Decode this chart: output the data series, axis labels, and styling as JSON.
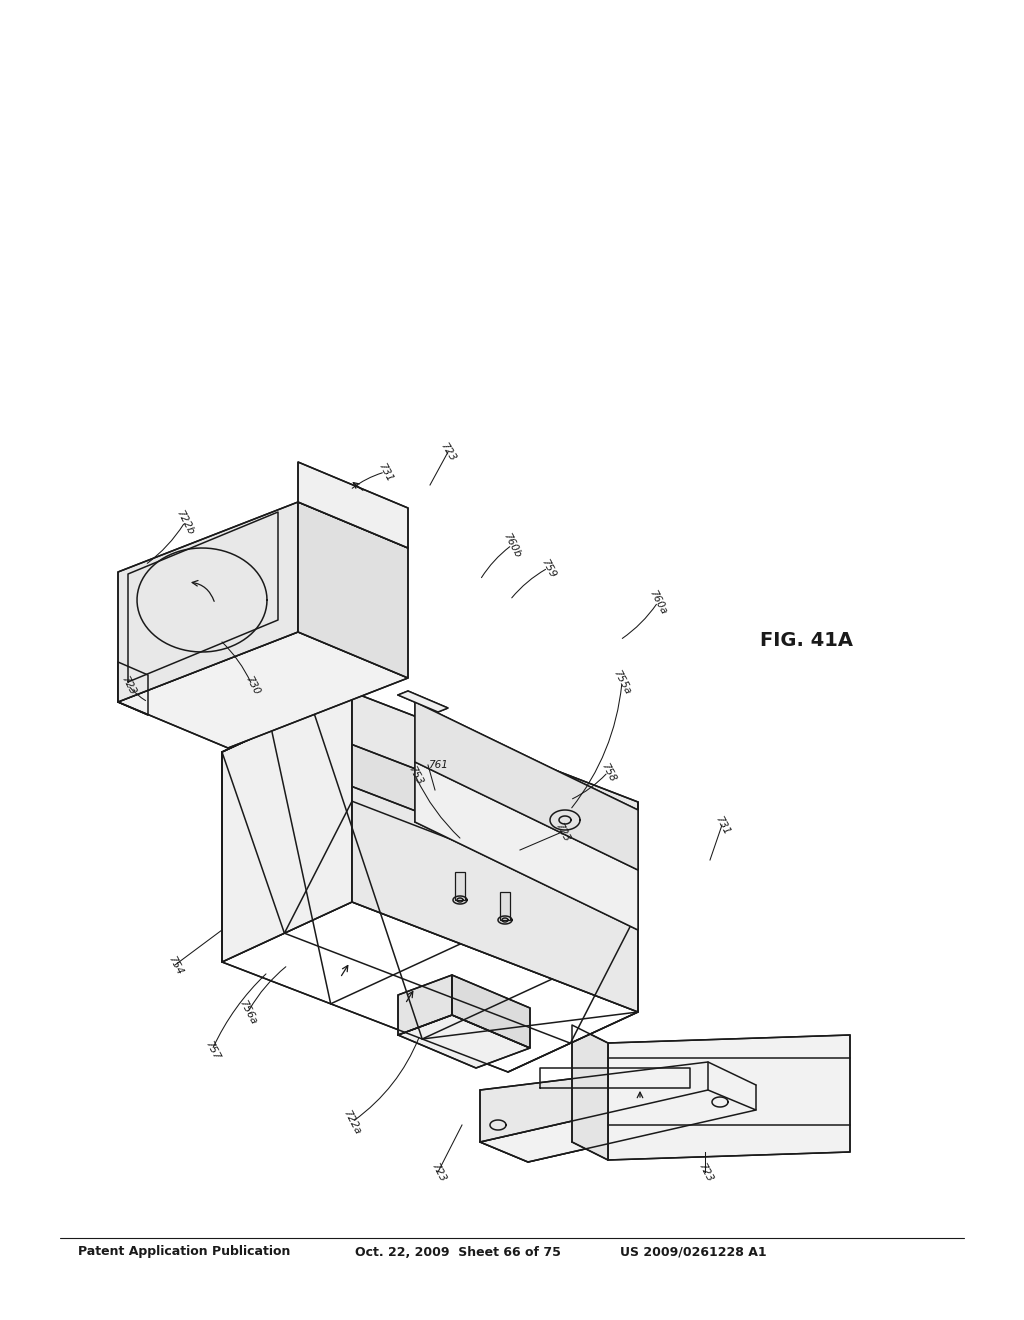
{
  "header_left": "Patent Application Publication",
  "header_mid": "Oct. 22, 2009  Sheet 66 of 75",
  "header_right": "US 2009/0261228 A1",
  "fig_label": "FIG. 41A",
  "bg_color": "#ffffff",
  "lc": "#1a1a1a",
  "lw": 1.1
}
